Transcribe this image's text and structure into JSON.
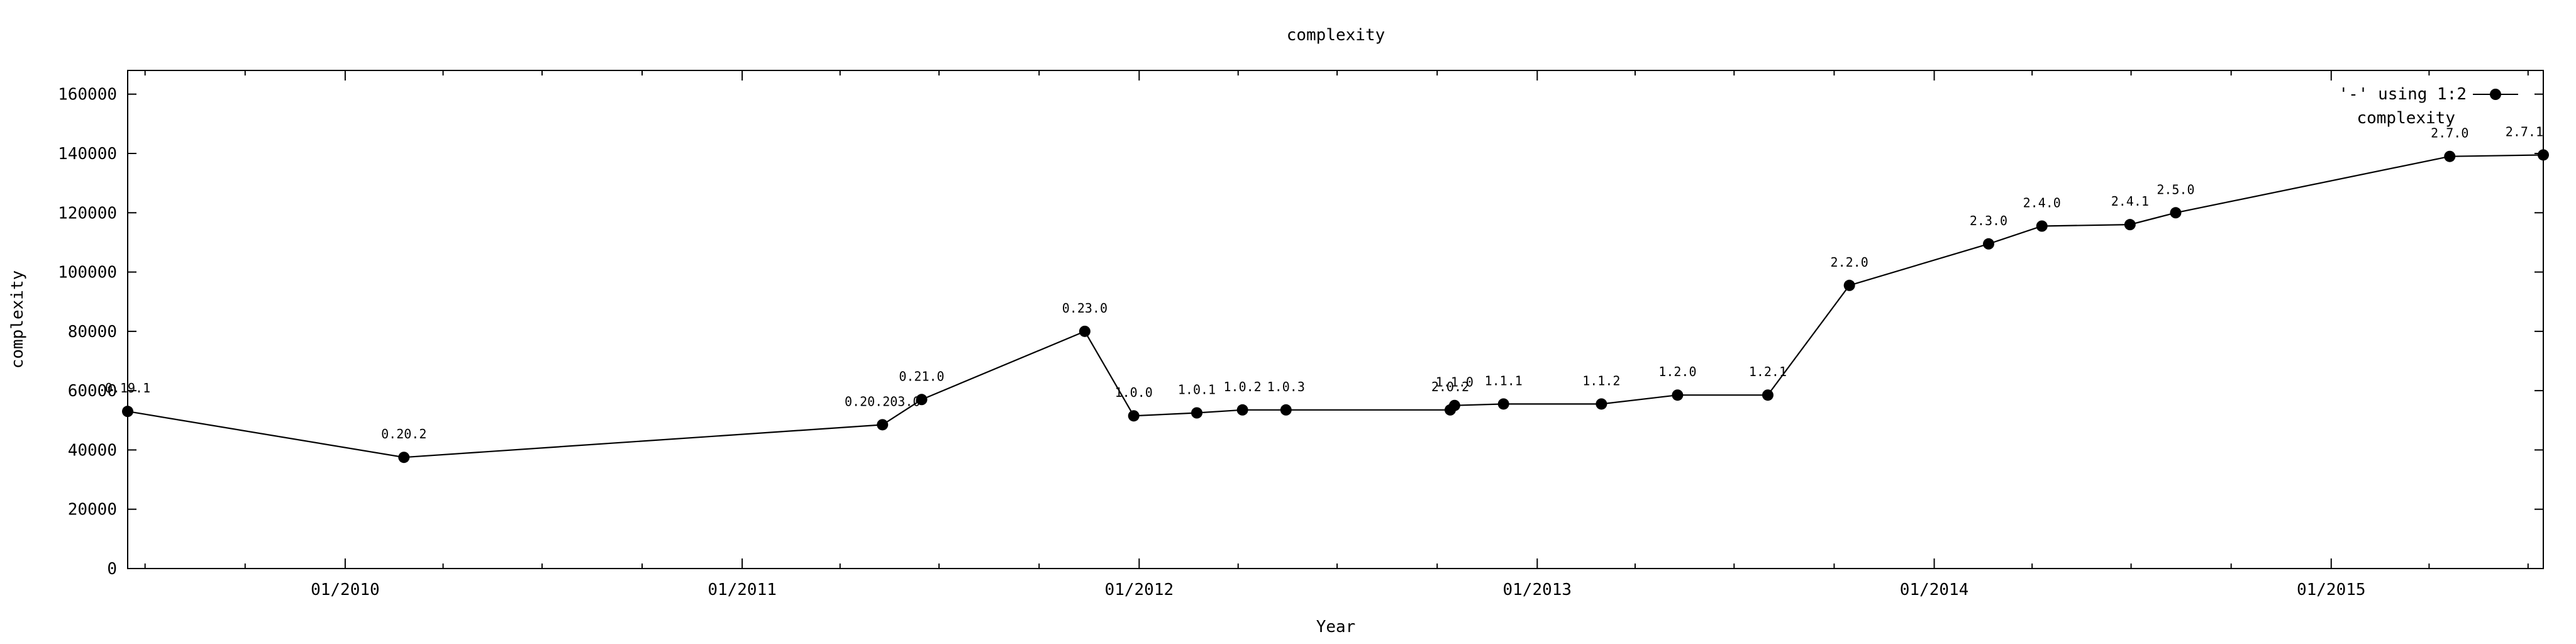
{
  "chart_data": {
    "type": "line",
    "title": "complexity",
    "xlabel": "Year",
    "ylabel": "complexity",
    "x_ticks": [
      "01/2010",
      "01/2011",
      "01/2012",
      "01/2013",
      "01/2014",
      "01/2015"
    ],
    "x_tick_dates": [
      "2010-01-01",
      "2011-01-01",
      "2012-01-01",
      "2013-01-01",
      "2014-01-01",
      "2015-01-01"
    ],
    "xlim": [
      "2009-06-15",
      "2015-07-15"
    ],
    "ylim": [
      0,
      168000
    ],
    "y_ticks": [
      0,
      20000,
      40000,
      60000,
      80000,
      100000,
      120000,
      140000,
      160000
    ],
    "grid": false,
    "legend": {
      "position": "top-right",
      "line1": "'-' using 1:2",
      "line2": "complexity"
    },
    "series": [
      {
        "color": "#000000",
        "points": [
          {
            "x": "2009-06-15",
            "y": 53000,
            "label": "0.19.1"
          },
          {
            "x": "2010-02-24",
            "y": 37500,
            "label": "0.20.2"
          },
          {
            "x": "2011-05-10",
            "y": 48500,
            "label": "0.20.203.0"
          },
          {
            "x": "2011-06-15",
            "y": 57000,
            "label": "0.21.0"
          },
          {
            "x": "2011-11-12",
            "y": 80000,
            "label": "0.23.0"
          },
          {
            "x": "2011-12-27",
            "y": 51500,
            "label": "1.0.0"
          },
          {
            "x": "2012-02-23",
            "y": 52500,
            "label": "1.0.1"
          },
          {
            "x": "2012-04-05",
            "y": 53500,
            "label": "1.0.2"
          },
          {
            "x": "2012-05-15",
            "y": 53500,
            "label": "1.0.3"
          },
          {
            "x": "2012-10-13",
            "y": 53500,
            "label": "2.0.2"
          },
          {
            "x": "2012-10-17",
            "y": 55000,
            "label": "1.1.0"
          },
          {
            "x": "2012-12-01",
            "y": 55500,
            "label": "1.1.1"
          },
          {
            "x": "2013-03-01",
            "y": 55500,
            "label": "1.1.2"
          },
          {
            "x": "2013-05-10",
            "y": 58500,
            "label": "1.2.0"
          },
          {
            "x": "2013-08-01",
            "y": 58500,
            "label": "1.2.1"
          },
          {
            "x": "2013-10-15",
            "y": 95500,
            "label": "2.2.0"
          },
          {
            "x": "2014-02-20",
            "y": 109500,
            "label": "2.3.0"
          },
          {
            "x": "2014-04-10",
            "y": 115500,
            "label": "2.4.0"
          },
          {
            "x": "2014-06-30",
            "y": 116000,
            "label": "2.4.1"
          },
          {
            "x": "2014-08-11",
            "y": 120000,
            "label": "2.5.0"
          },
          {
            "x": "2015-04-20",
            "y": 139000,
            "label": "2.7.0"
          },
          {
            "x": "2015-07-15",
            "y": 139500,
            "label": "2.7.1"
          }
        ]
      }
    ]
  }
}
